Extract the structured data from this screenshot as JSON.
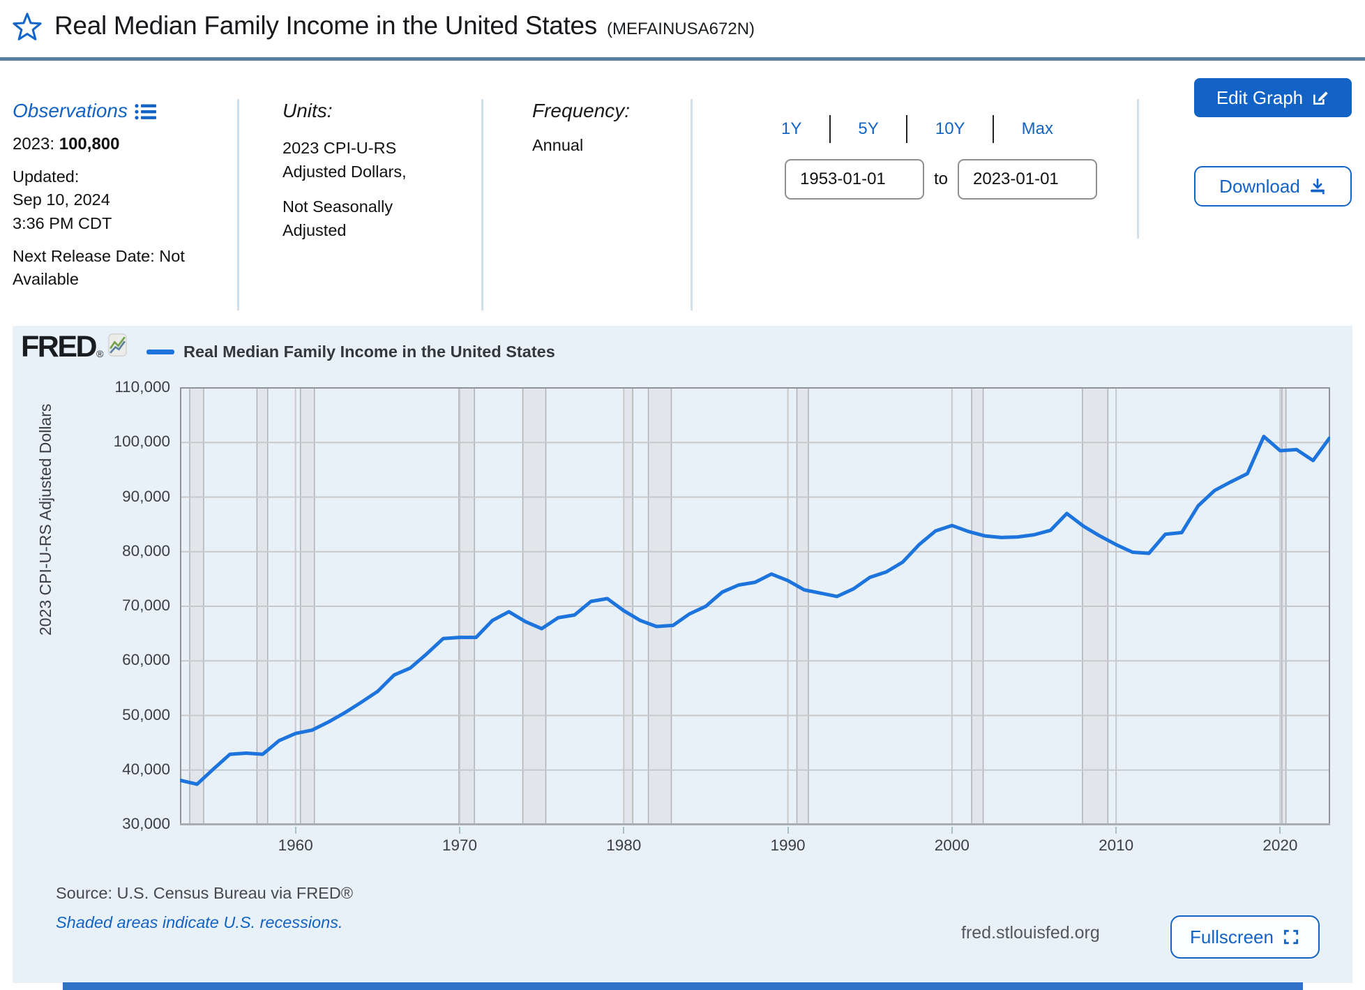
{
  "header": {
    "title": "Real Median Family Income in the United States",
    "series_code": "(MEFAINUSA672N)"
  },
  "meta": {
    "observations": {
      "label": "Observations",
      "latest_prefix": "2023: ",
      "latest_value": "100,800",
      "updated_lines": [
        "Updated:",
        "Sep 10, 2024",
        "3:36 PM CDT"
      ],
      "next_release": "Next Release Date: Not Available"
    },
    "units": {
      "label": "Units:",
      "line1": "2023 CPI-U-RS Adjusted Dollars,",
      "line2": "Not Seasonally Adjusted"
    },
    "frequency": {
      "label": "Frequency:",
      "value": "Annual"
    }
  },
  "range_controls": {
    "presets": [
      "1Y",
      "5Y",
      "10Y",
      "Max"
    ],
    "start_date": "1953-01-01",
    "to_label": "to",
    "end_date": "2023-01-01"
  },
  "actions": {
    "edit_graph": "Edit Graph",
    "download": "Download",
    "fullscreen": "Fullscreen"
  },
  "logo": {
    "text": "FRED",
    "reg": "®"
  },
  "chart_footer": {
    "source": "Source: U.S. Census Bureau via FRED®",
    "recession_note": "Shaded areas indicate U.S. recessions.",
    "site": "fred.stlouisfed.org"
  },
  "colors": {
    "accent": "#1263c5",
    "line": "#1d74dd",
    "panel": "#e9f1f8",
    "rule": "#56809e",
    "divider": "#cfe0ea",
    "grid": "#c7c9cb",
    "pborder": "#8f9398",
    "recess": "#e2e6ea",
    "recess-edge": "#aeb2b7"
  },
  "chart_data": {
    "type": "line",
    "title": "Real Median Family Income in the United States",
    "ylabel": "2023 CPI-U-RS Adjusted Dollars",
    "xlabel": "",
    "ylim": [
      30000,
      110000
    ],
    "ytick_step": 10000,
    "xlim": [
      1953,
      2023
    ],
    "xticks": [
      1960,
      1970,
      1980,
      1990,
      2000,
      2010,
      2020
    ],
    "grid": true,
    "legend_position": "top-left",
    "x": [
      1953,
      1954,
      1955,
      1956,
      1957,
      1958,
      1959,
      1960,
      1961,
      1962,
      1963,
      1964,
      1965,
      1966,
      1967,
      1968,
      1969,
      1970,
      1971,
      1972,
      1973,
      1974,
      1975,
      1976,
      1977,
      1978,
      1979,
      1980,
      1981,
      1982,
      1983,
      1984,
      1985,
      1986,
      1987,
      1988,
      1989,
      1990,
      1991,
      1992,
      1993,
      1994,
      1995,
      1996,
      1997,
      1998,
      1999,
      2000,
      2001,
      2002,
      2003,
      2004,
      2005,
      2006,
      2007,
      2008,
      2009,
      2010,
      2011,
      2012,
      2013,
      2014,
      2015,
      2016,
      2017,
      2018,
      2019,
      2020,
      2021,
      2022,
      2023
    ],
    "values": [
      38100,
      37400,
      40200,
      42900,
      43100,
      42900,
      45400,
      46700,
      47300,
      48800,
      50500,
      52400,
      54400,
      57400,
      58700,
      61300,
      64100,
      64300,
      64300,
      67400,
      69000,
      67200,
      65900,
      67900,
      68400,
      70900,
      71400,
      69200,
      67400,
      66300,
      66500,
      68600,
      70000,
      72600,
      73900,
      74400,
      75900,
      74700,
      73000,
      72400,
      71800,
      73200,
      75300,
      76300,
      78100,
      81300,
      83800,
      84800,
      83700,
      82900,
      82600,
      82700,
      83100,
      83900,
      87000,
      84700,
      82900,
      81300,
      79900,
      79700,
      83200,
      83500,
      88400,
      91200,
      92800,
      94300,
      101100,
      98500,
      98700,
      96700,
      100800
    ],
    "recessions": [
      [
        1953.55,
        1954.4
      ],
      [
        1957.65,
        1958.3
      ],
      [
        1960.3,
        1961.15
      ],
      [
        1969.95,
        1970.9
      ],
      [
        1973.85,
        1975.25
      ],
      [
        1980.0,
        1980.55
      ],
      [
        1981.5,
        1982.9
      ],
      [
        1990.55,
        1991.25
      ],
      [
        2001.2,
        2001.9
      ],
      [
        2007.95,
        2009.5
      ],
      [
        2020.1,
        2020.35
      ]
    ]
  }
}
